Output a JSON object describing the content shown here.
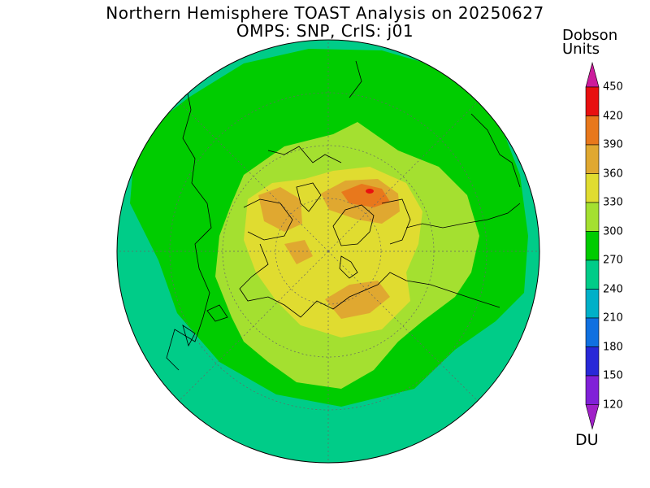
{
  "header": {
    "title": "Northern Hemisphere TOAST Analysis on 20250627",
    "subtitle": "OMPS: SNP, CrIS: j01"
  },
  "colorbar": {
    "title_line1": "Dobson",
    "title_line2": "Units",
    "unit": "DU",
    "levels": [
      {
        "value": "450",
        "color": "#cc1c9c"
      },
      {
        "value": "420",
        "color": "#e81010"
      },
      {
        "value": "390",
        "color": "#e8781c"
      },
      {
        "value": "360",
        "color": "#e0a830"
      },
      {
        "value": "330",
        "color": "#e0dc30"
      },
      {
        "value": "300",
        "color": "#a4e030"
      },
      {
        "value": "270",
        "color": "#00cc00"
      },
      {
        "value": "240",
        "color": "#00cc88"
      },
      {
        "value": "210",
        "color": "#00b0c8"
      },
      {
        "value": "180",
        "color": "#1070e0"
      },
      {
        "value": "150",
        "color": "#2828d8"
      },
      {
        "value": "120",
        "color": "#8020d8"
      }
    ],
    "bottom_color": "#a020c8"
  },
  "map": {
    "projection": "north polar stereographic",
    "colors": {
      "band_240": "#00cc88",
      "band_270": "#00cc00",
      "band_300": "#a4e030",
      "band_330": "#e0dc30",
      "band_360": "#e0a830",
      "band_390": "#e8781c",
      "band_420": "#e81010"
    }
  }
}
